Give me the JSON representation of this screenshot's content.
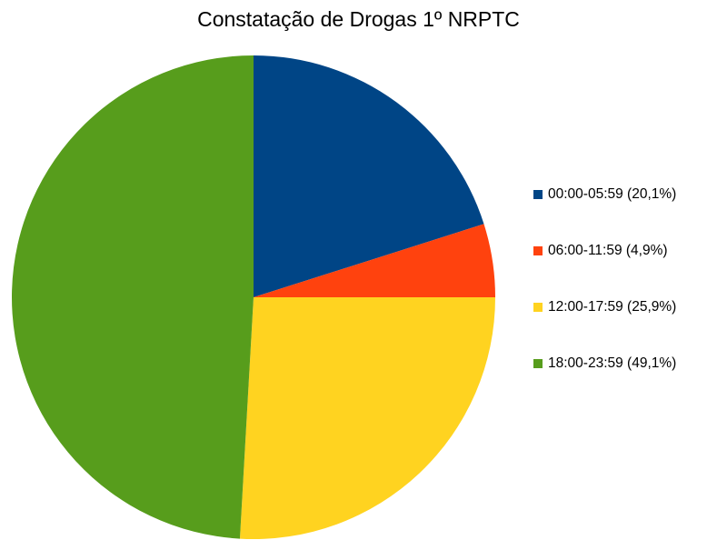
{
  "chart_data": {
    "type": "pie",
    "title": "Constatação de Drogas 1º NRPTC",
    "categories": [
      "00:00-05:59",
      "06:00-11:59",
      "12:00-17:59",
      "18:00-23:59"
    ],
    "values": [
      20.1,
      4.9,
      25.9,
      49.1
    ],
    "legend_labels": [
      "00:00-05:59  (20,1%)",
      "06:00-11:59  (4,9%)",
      "12:00-17:59  (25,9%)",
      "18:00-23:59  (49,1%)"
    ],
    "colors": [
      "#004586",
      "#ff420e",
      "#ffd320",
      "#579d1c"
    ],
    "legend_position": "right"
  }
}
